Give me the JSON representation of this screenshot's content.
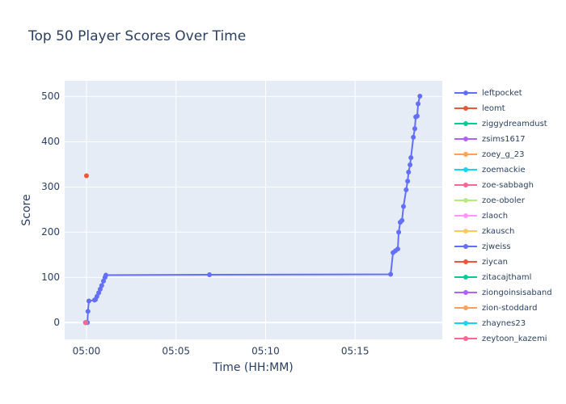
{
  "chart_data": {
    "type": "line",
    "title": "Top 50 Player Scores Over Time",
    "x_label": "Time (HH:MM)",
    "y_label": "Score",
    "xlim": [
      "04:58:47",
      "05:19:52"
    ],
    "xticks": [
      "05:00",
      "05:05",
      "05:10",
      "05:15"
    ],
    "ylim": [
      -37,
      535
    ],
    "yticks": [
      0,
      100,
      200,
      300,
      400,
      500
    ],
    "grid": true,
    "series": [
      {
        "name": "leftpocket",
        "color": "#636efa",
        "x": [
          "05:00:03",
          "05:00:05",
          "05:00:08",
          "05:00:27",
          "05:00:30",
          "05:00:35",
          "05:00:41",
          "05:00:46",
          "05:00:51",
          "05:00:57",
          "05:01:02",
          "05:01:05",
          "05:06:52",
          "05:16:59",
          "05:17:07",
          "05:17:15",
          "05:17:23",
          "05:17:26",
          "05:17:31",
          "05:17:37",
          "05:17:42",
          "05:17:51",
          "05:17:56",
          "05:17:59",
          "05:18:04",
          "05:18:07",
          "05:18:15",
          "05:18:20",
          "05:18:23",
          "05:18:28",
          "05:18:31",
          "05:18:37"
        ],
        "values": [
          0,
          25,
          48,
          50,
          51,
          58,
          66,
          74,
          82,
          92,
          100,
          105,
          106,
          107,
          155,
          159,
          163,
          200,
          222,
          226,
          257,
          294,
          313,
          333,
          349,
          365,
          410,
          429,
          455,
          457,
          484,
          501
        ]
      },
      {
        "name": "leomt",
        "color": "#EF553B",
        "x": [
          "05:00:00"
        ],
        "values": [
          325
        ]
      },
      {
        "name": "ziggydreamdust",
        "color": "#00cc96",
        "x": [
          "04:59:57"
        ],
        "values": [
          0
        ]
      },
      {
        "name": "zsims1617",
        "color": "#ab63fa",
        "x": [
          "04:59:57"
        ],
        "values": [
          0
        ]
      },
      {
        "name": "zoey_g_23",
        "color": "#FFA15A",
        "x": [
          "04:59:57"
        ],
        "values": [
          0
        ]
      },
      {
        "name": "zoemackie",
        "color": "#19d3f3",
        "x": [
          "04:59:57"
        ],
        "values": [
          0
        ]
      },
      {
        "name": "zoe-sabbagh",
        "color": "#FF6692",
        "x": [
          "04:59:57"
        ],
        "values": [
          0
        ]
      },
      {
        "name": "zoe-oboler",
        "color": "#B6E880",
        "x": [
          "04:59:57"
        ],
        "values": [
          0
        ]
      },
      {
        "name": "zlaoch",
        "color": "#FF97FF",
        "x": [
          "04:59:57"
        ],
        "values": [
          0
        ]
      },
      {
        "name": "zkausch",
        "color": "#FECB52",
        "x": [
          "04:59:57"
        ],
        "values": [
          0
        ]
      },
      {
        "name": "zjweiss",
        "color": "#636efa",
        "x": [
          "04:59:57"
        ],
        "values": [
          0
        ]
      },
      {
        "name": "ziycan",
        "color": "#EF553B",
        "x": [
          "04:59:57"
        ],
        "values": [
          0
        ]
      },
      {
        "name": "zitacajthaml",
        "color": "#00cc96",
        "x": [
          "04:59:57"
        ],
        "values": [
          0
        ]
      },
      {
        "name": "ziongoinsisaband",
        "color": "#ab63fa",
        "x": [
          "04:59:57"
        ],
        "values": [
          0
        ]
      },
      {
        "name": "zion-stoddard",
        "color": "#FFA15A",
        "x": [
          "04:59:57"
        ],
        "values": [
          0
        ]
      },
      {
        "name": "zhaynes23",
        "color": "#19d3f3",
        "x": [
          "04:59:57"
        ],
        "values": [
          0
        ]
      },
      {
        "name": "zeytoon_kazemi",
        "color": "#FF6692",
        "x": [
          "04:59:57"
        ],
        "values": [
          0
        ]
      }
    ]
  }
}
